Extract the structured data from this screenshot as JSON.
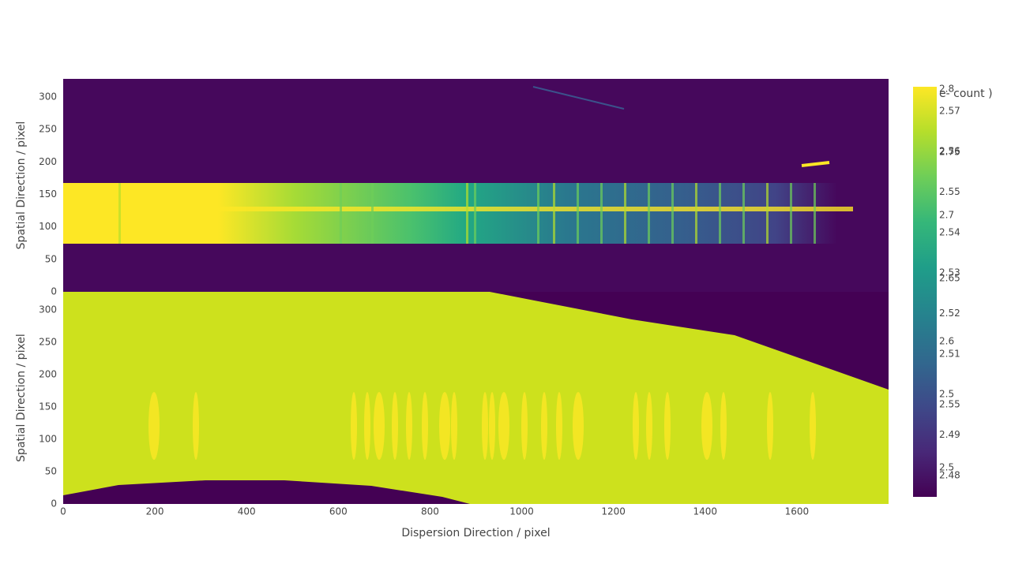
{
  "chart_data": [
    {
      "type": "heatmap",
      "ylabel": "Spatial Direction / pixel",
      "colorscale": "Viridis",
      "xlim": [
        0,
        1800
      ],
      "ylim": [
        0,
        328
      ],
      "yticks": [
        0,
        50,
        100,
        150,
        200,
        250,
        300
      ],
      "colorbar": {
        "title": "e- count )",
        "zlim": [
          2.477,
          2.802
        ],
        "ticks": [
          2.8,
          2.75,
          2.7,
          2.65,
          2.6,
          2.55,
          2.5
        ]
      }
    },
    {
      "type": "heatmap",
      "ylabel": "Spatial Direction / pixel",
      "xlabel": "Dispersion Direction / pixel",
      "colorscale": "Viridis",
      "xlim": [
        0,
        1800
      ],
      "ylim": [
        0,
        328
      ],
      "yticks": [
        0,
        50,
        100,
        150,
        200,
        250,
        300
      ],
      "xticks": [
        0,
        200,
        400,
        600,
        800,
        1000,
        1200,
        1400,
        1600
      ],
      "colorbar": {
        "zlim": [
          2.4747,
          2.576
        ],
        "ticks": [
          2.57,
          2.56,
          2.55,
          2.54,
          2.53,
          2.52,
          2.51,
          2.5,
          2.49,
          2.48
        ]
      }
    }
  ]
}
